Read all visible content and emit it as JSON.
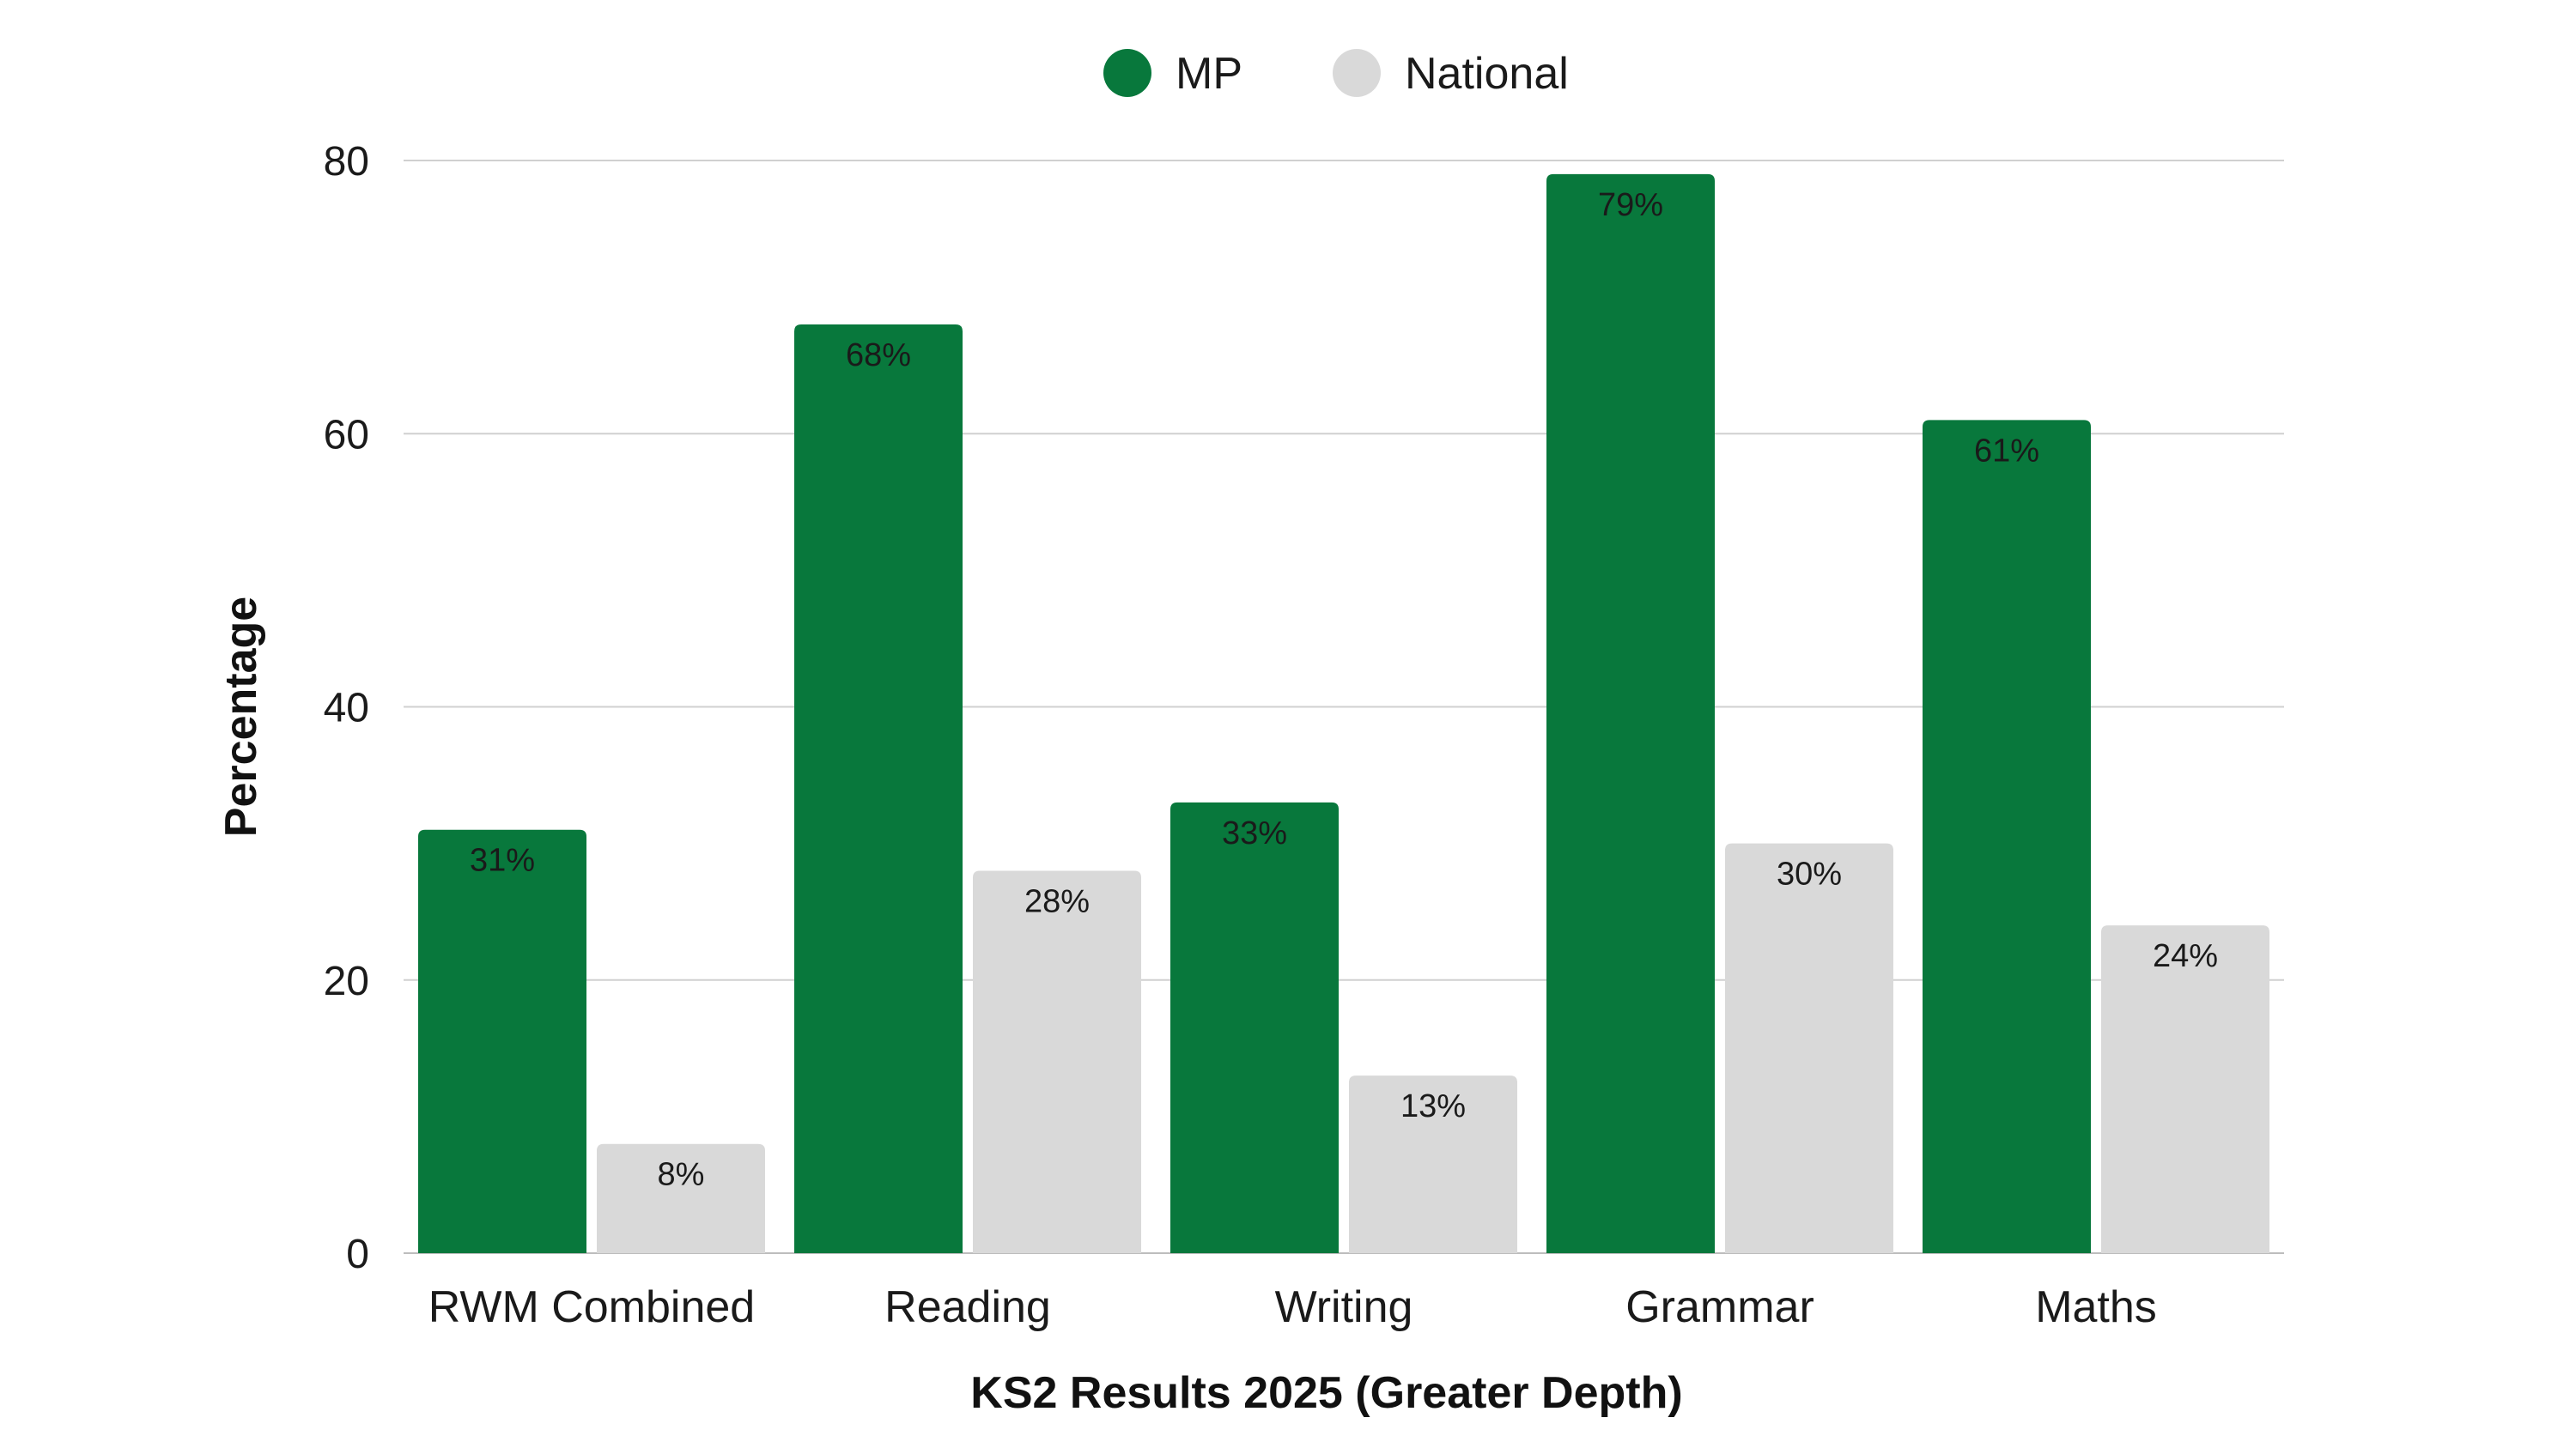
{
  "chart_data": {
    "type": "bar",
    "title": "",
    "xlabel": "KS2 Results 2025 (Greater Depth)",
    "ylabel": "Percentage",
    "ylim": [
      0,
      80
    ],
    "yticks": [
      0,
      20,
      40,
      60,
      80
    ],
    "grid": true,
    "legend_position": "top-center",
    "categories": [
      "RWM Combined",
      "Reading",
      "Writing",
      "Grammar",
      "Maths"
    ],
    "series": [
      {
        "name": "MP",
        "color": "#08783C",
        "values": [
          31,
          68,
          33,
          79,
          61
        ],
        "labels": [
          "31%",
          "68%",
          "33%",
          "79%",
          "61%"
        ]
      },
      {
        "name": "National",
        "color": "#D9D9D9",
        "values": [
          8,
          28,
          13,
          30,
          24
        ],
        "labels": [
          "8%",
          "28%",
          "13%",
          "30%",
          "24%"
        ]
      }
    ]
  }
}
